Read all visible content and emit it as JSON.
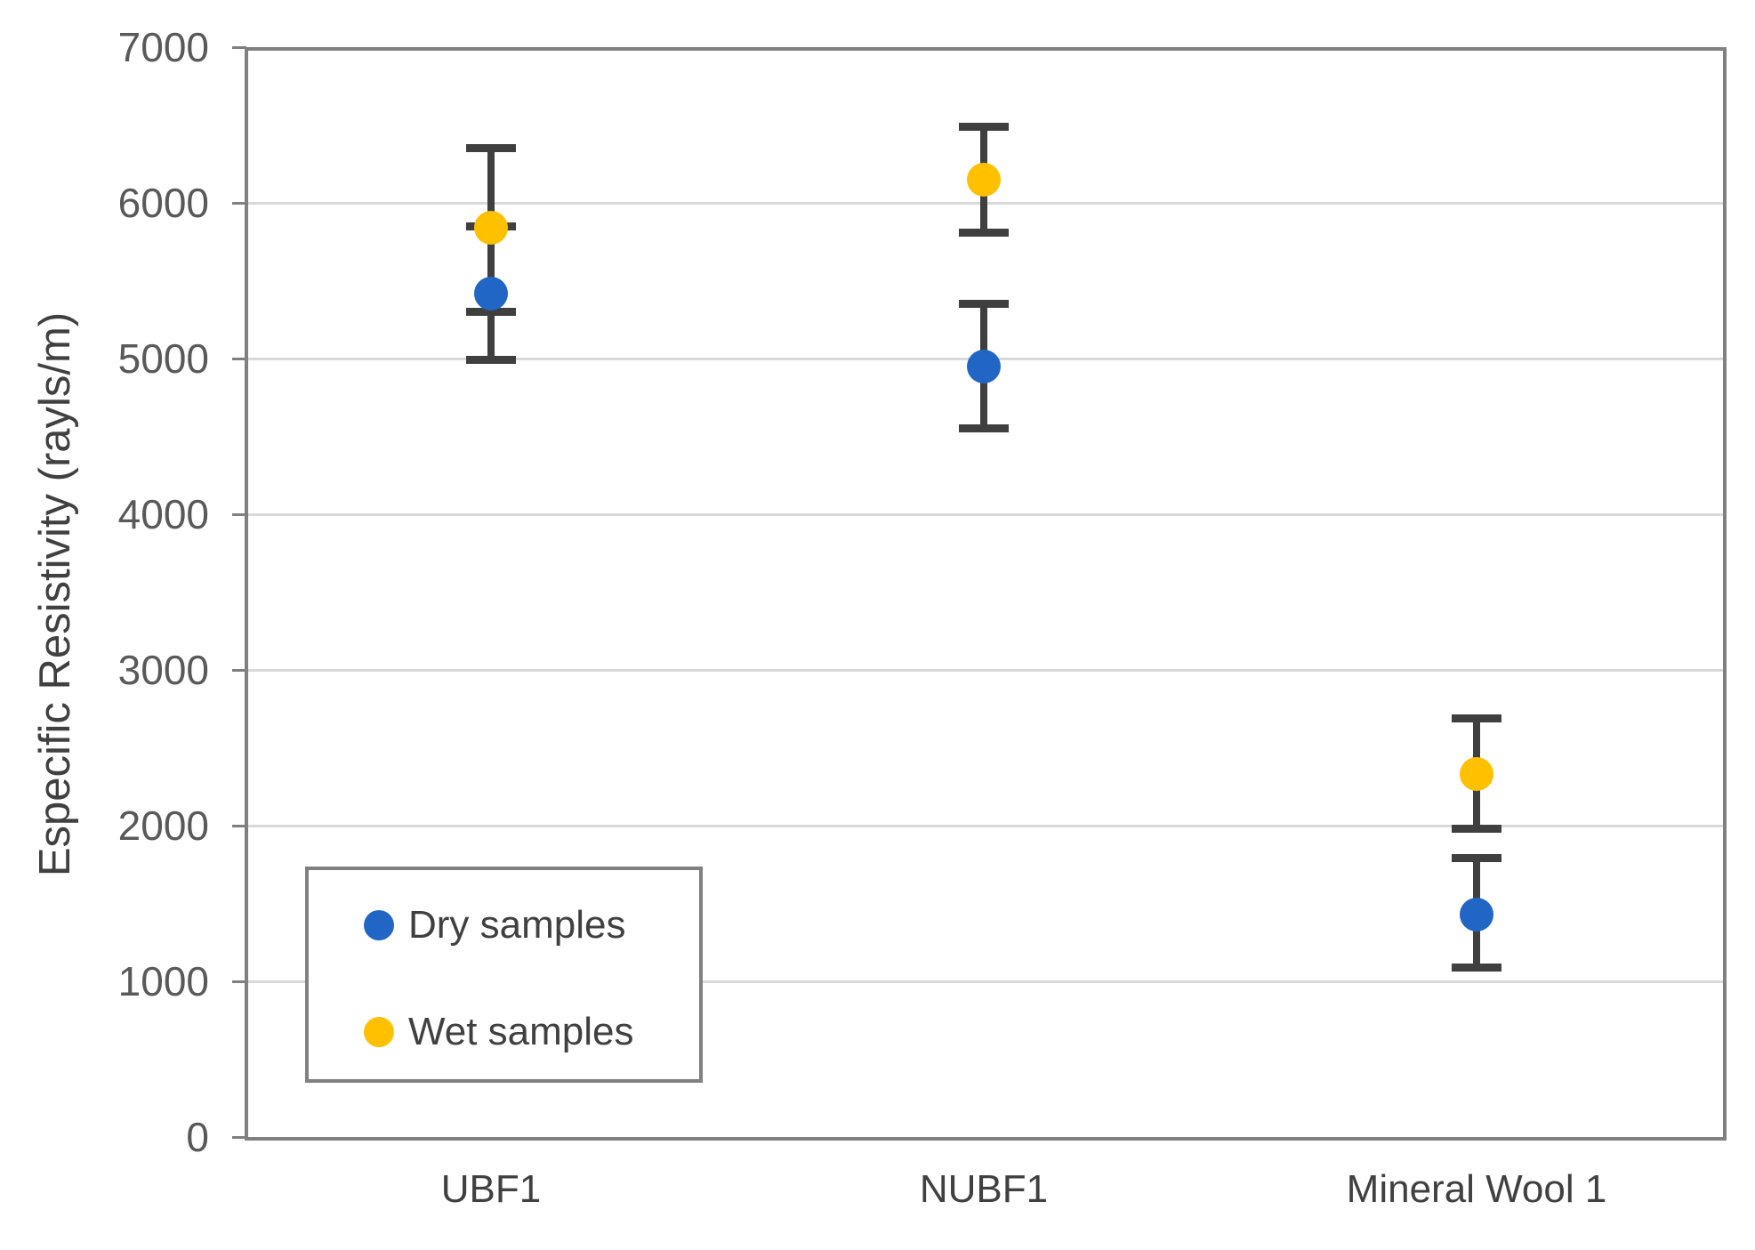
{
  "chart_data": {
    "type": "scatter",
    "title": "",
    "ylabel": "Especific Resistivity (rayls/m)",
    "xlabel": "",
    "ylim": [
      0,
      7000
    ],
    "yticks": [
      0,
      1000,
      2000,
      3000,
      4000,
      5000,
      6000,
      7000
    ],
    "grid": true,
    "categories": [
      "UBF1",
      "NUBF1",
      "Mineral Wool 1"
    ],
    "legend": {
      "position": "bottom-left",
      "items": [
        "Dry samples",
        "Wet samples"
      ]
    },
    "series": [
      {
        "name": "Dry samples",
        "color": "#2166C4",
        "marker": "circle",
        "values": [
          5420,
          4950,
          1430
        ],
        "error_low": [
          4990,
          4550,
          1090
        ],
        "error_high": [
          5850,
          5350,
          1790
        ]
      },
      {
        "name": "Wet samples",
        "color": "#FFC000",
        "marker": "circle",
        "values": [
          5840,
          6150,
          2330
        ],
        "error_low": [
          5300,
          5810,
          1980
        ],
        "error_high": [
          6350,
          6490,
          2690
        ]
      }
    ],
    "colors": {
      "error_bar": "#3F3F3F",
      "gridline": "#D9D9D9",
      "axis": "#808080",
      "tick_label": "#595959",
      "category_label": "#404040",
      "legend_text": "#404040",
      "background": "#FFFFFF"
    }
  }
}
